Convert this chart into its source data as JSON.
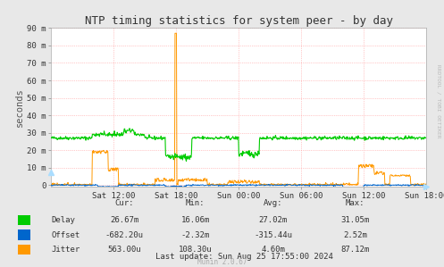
{
  "title": "NTP timing statistics for system peer - by day",
  "ylabel": "seconds",
  "bg_color": "#e8e8e8",
  "plot_bg_color": "#ffffff",
  "grid_color": "#ff9999",
  "ytick_labels": [
    "0",
    "10 m",
    "20 m",
    "30 m",
    "40 m",
    "50 m",
    "60 m",
    "70 m",
    "80 m",
    "90 m"
  ],
  "ytick_values": [
    0,
    0.01,
    0.02,
    0.03,
    0.04,
    0.05,
    0.06,
    0.07,
    0.08,
    0.09
  ],
  "ymax": 0.09,
  "xtick_labels": [
    "Sat 12:00",
    "Sat 18:00",
    "Sun 00:00",
    "Sun 06:00",
    "Sun 12:00",
    "Sun 18:00"
  ],
  "delay_color": "#00cc00",
  "offset_color": "#0066cc",
  "jitter_color": "#ff9900",
  "legend_items": [
    {
      "label": "Delay",
      "color": "#00cc00"
    },
    {
      "label": "Offset",
      "color": "#0066cc"
    },
    {
      "label": "Jitter",
      "color": "#ff9900"
    }
  ],
  "stats": {
    "headers": [
      "Cur:",
      "Min:",
      "Avg:",
      "Max:"
    ],
    "rows": [
      [
        "26.67m",
        "16.06m",
        "27.02m",
        "31.05m"
      ],
      [
        "-682.20u",
        "-2.32m",
        "-315.44u",
        "2.52m"
      ],
      [
        "563.00u",
        "108.30u",
        "4.60m",
        "87.12m"
      ]
    ]
  },
  "last_update": "Last update: Sun Aug 25 17:55:00 2024",
  "munin_version": "Munin 2.0.67",
  "rrdtool_label": "RRDTOOL / TOBI OETIKER"
}
